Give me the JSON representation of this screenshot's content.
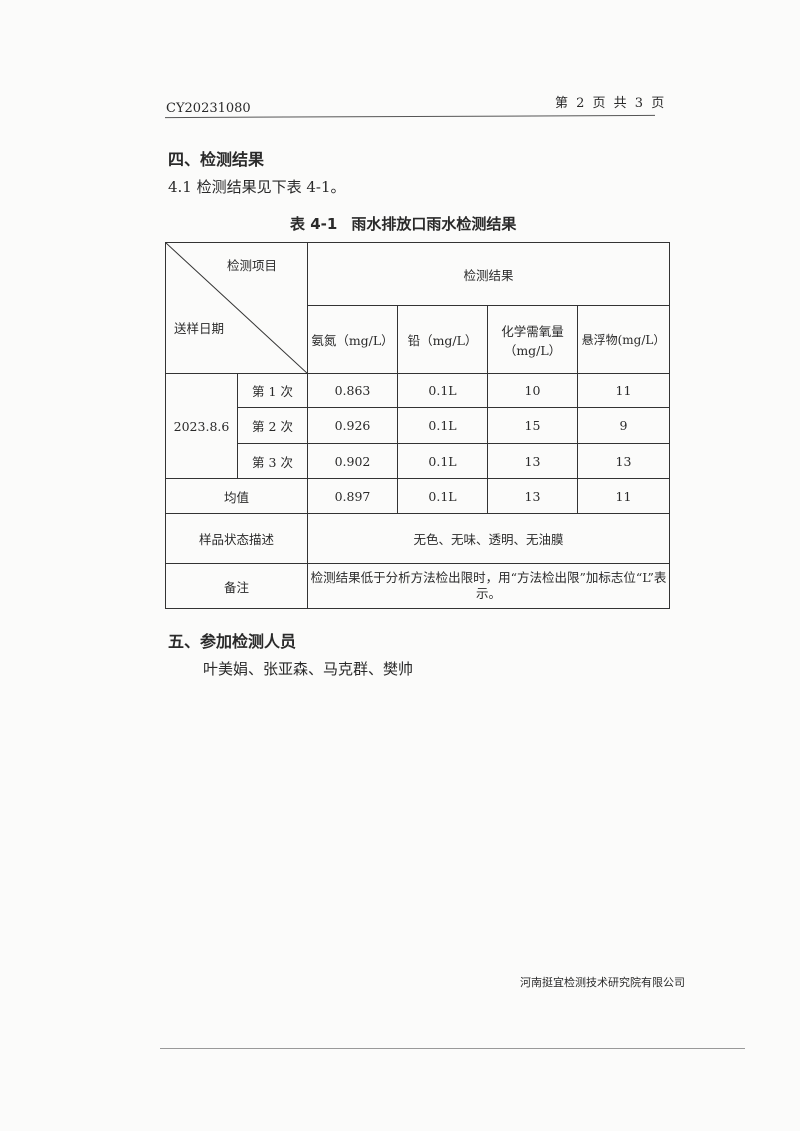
{
  "header": {
    "doc_no": "CY20231080",
    "page_info": "第 2 页 共 3 页"
  },
  "section4": {
    "title": "四、检测结果",
    "intro": "4.1 检测结果见下表 4-1。"
  },
  "table": {
    "caption_no": "表 4-1",
    "caption_title": "雨水排放口雨水检测结果",
    "corner_top": "检测项目",
    "corner_bottom": "送样日期",
    "group_header": "检测结果",
    "columns": [
      "氨氮（mg/L）",
      "铅（mg/L）",
      "化学需氧量（mg/L）",
      "悬浮物(mg/L）"
    ],
    "date": "2023.8.6",
    "rows": [
      {
        "label": "第 1 次",
        "values": [
          "0.863",
          "0.1L",
          "10",
          "11"
        ]
      },
      {
        "label": "第 2 次",
        "values": [
          "0.926",
          "0.1L",
          "15",
          "9"
        ]
      },
      {
        "label": "第 3 次",
        "values": [
          "0.902",
          "0.1L",
          "13",
          "13"
        ]
      }
    ],
    "mean": {
      "label": "均值",
      "values": [
        "0.897",
        "0.1L",
        "13",
        "11"
      ]
    },
    "state": {
      "label": "样品状态描述",
      "value": "无色、无味、透明、无油膜"
    },
    "remark": {
      "label": "备注",
      "value": "检测结果低于分析方法检出限时，用“方法检出限”加标志位“L”表示。"
    }
  },
  "section5": {
    "title": "五、参加检测人员",
    "staff": "叶美娟、张亚森、马克群、樊帅"
  },
  "footer": {
    "company": "河南挺宜检测技术研究院有限公司"
  }
}
